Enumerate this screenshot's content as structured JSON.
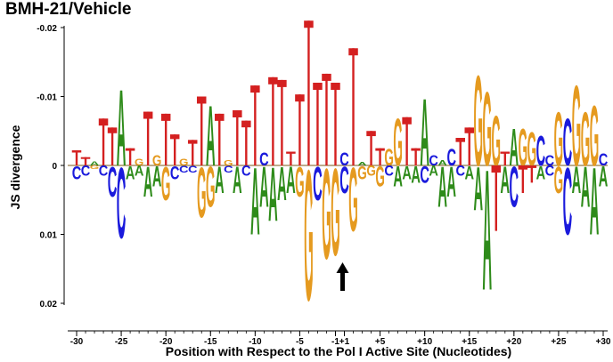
{
  "chart_data": {
    "type": "sequence-logo-divergence",
    "title": "BMH-21/Vehicle",
    "xlabel": "Position with Respect to the Pol I Active Site (Nucleotides)",
    "ylabel": "JS divergence",
    "ylim": [
      0.02,
      -0.02
    ],
    "yticks": [
      -0.02,
      -0.01,
      0,
      0.01,
      0.02
    ],
    "ytick_labels": [
      "-0.02",
      "-0.01",
      "0",
      "0.01",
      "0.02"
    ],
    "xticks": [
      -30,
      -25,
      -20,
      -15,
      -10,
      -5,
      -1,
      1,
      5,
      10,
      15,
      20,
      25,
      30
    ],
    "xtick_labels": [
      "-30",
      "-25",
      "-20",
      "-15",
      "-10",
      "-5",
      "-1",
      "+1",
      "+5",
      "+10",
      "+15",
      "+20",
      "+25",
      "+30"
    ],
    "positions": [
      -30,
      -29,
      -28,
      -27,
      -26,
      -25,
      -24,
      -23,
      -22,
      -21,
      -20,
      -19,
      -18,
      -17,
      -16,
      -15,
      -14,
      -13,
      -12,
      -11,
      -10,
      -9,
      -8,
      -7,
      -6,
      -5,
      -4,
      -3,
      -2,
      -1,
      1,
      2,
      3,
      4,
      5,
      6,
      7,
      8,
      9,
      10,
      11,
      12,
      13,
      14,
      15,
      16,
      17,
      18,
      19,
      20,
      21,
      22,
      23,
      24,
      25,
      26,
      27,
      28,
      29,
      30
    ],
    "colors": {
      "A": "#2e8b1a",
      "C": "#1a1adc",
      "G": "#e59a1f",
      "T": "#d42020"
    },
    "letters_above": [
      [
        [
          "T",
          0.0022
        ]
      ],
      [
        [
          "T",
          0.0012
        ]
      ],
      [
        [
          "A",
          0.0006
        ]
      ],
      [
        [
          "T",
          0.0068
        ]
      ],
      [
        [
          "T",
          0.0055
        ]
      ],
      [
        [
          "A",
          0.0114
        ]
      ],
      [
        [
          "T",
          0.0025
        ]
      ],
      [
        [
          "G",
          0.001
        ]
      ],
      [
        [
          "T",
          0.0078
        ]
      ],
      [
        [
          "G",
          0.0015
        ]
      ],
      [
        [
          "T",
          0.0075
        ]
      ],
      [
        [
          "T",
          0.0045
        ]
      ],
      [
        [
          "G",
          0.001
        ]
      ],
      [
        [
          "T",
          0.0037
        ]
      ],
      [
        [
          "T",
          0.01
        ]
      ],
      [
        [
          "A",
          0.009
        ]
      ],
      [
        [
          "T",
          0.0075
        ]
      ],
      [
        [
          "G",
          0.0008
        ]
      ],
      [
        [
          "T",
          0.008
        ]
      ],
      [
        [
          "T",
          0.0065
        ]
      ],
      [
        [
          "T",
          0.0116
        ]
      ],
      [
        [
          "C",
          0.002
        ]
      ],
      [
        [
          "T",
          0.0128
        ]
      ],
      [
        [
          "T",
          0.0124
        ]
      ],
      [
        [
          "T",
          0.002
        ]
      ],
      [
        [
          "T",
          0.0103
        ]
      ],
      [
        [
          "T",
          0.021
        ]
      ],
      [
        [
          "T",
          0.012
        ]
      ],
      [
        [
          "T",
          0.0133
        ]
      ],
      [
        [
          "T",
          0.012
        ]
      ],
      [
        [
          "C",
          0.002
        ]
      ],
      [
        [
          "T",
          0.017
        ]
      ],
      [
        [
          "A",
          0.0005
        ]
      ],
      [
        [
          "T",
          0.005
        ]
      ],
      [
        [
          "T",
          0.0025
        ]
      ],
      [
        [
          "G",
          0.0025
        ]
      ],
      [
        [
          "G",
          0.007
        ]
      ],
      [
        [
          "T",
          0.007
        ]
      ],
      [
        [
          "T",
          0.0025
        ]
      ],
      [
        [
          "A",
          0.01
        ]
      ],
      [
        [
          "C",
          0.0015
        ]
      ],
      [
        [
          "A",
          0.0008
        ]
      ],
      [
        [
          "C",
          0.0025
        ]
      ],
      [
        [
          "T",
          0.004
        ]
      ],
      [
        [
          "T",
          0.0055
        ]
      ],
      [
        [
          "G",
          0.0135
        ]
      ],
      [
        [
          "G",
          0.011
        ]
      ],
      [
        [
          "G",
          0.0075
        ]
      ],
      [
        [
          "T",
          0.002
        ]
      ],
      [
        [
          "A",
          0.0055
        ]
      ],
      [
        [
          "G",
          0.0055
        ]
      ],
      [
        [
          "G",
          0.005
        ]
      ],
      [
        [
          "C",
          0.0045
        ]
      ],
      [
        [
          "C",
          0.0015
        ]
      ],
      [
        [
          "G",
          0.008
        ]
      ],
      [
        [
          "C",
          0.007
        ]
      ],
      [
        [
          "G",
          0.012
        ]
      ],
      [
        [
          "G",
          0.008
        ]
      ],
      [
        [
          "G",
          0.009
        ]
      ],
      [
        [
          "C",
          0.0018
        ]
      ]
    ],
    "letters_below": [
      [
        [
          "C",
          0.002
        ]
      ],
      [
        [
          "C",
          0.0015
        ]
      ],
      [
        [
          "G",
          0.0005
        ]
      ],
      [
        [
          "C",
          0.0015
        ]
      ],
      [
        [
          "C",
          0.0045
        ]
      ],
      [
        [
          "C",
          0.0105
        ]
      ],
      [
        [
          "A",
          0.002
        ]
      ],
      [
        [
          "A",
          0.0015
        ]
      ],
      [
        [
          "A",
          0.0045
        ]
      ],
      [
        [
          "A",
          0.003
        ]
      ],
      [
        [
          "G",
          0.005
        ]
      ],
      [
        [
          "C",
          0.002
        ]
      ],
      [
        [
          "C",
          0.001
        ]
      ],
      [
        [
          "C",
          0.001
        ]
      ],
      [
        [
          "G",
          0.0075
        ]
      ],
      [
        [
          "G",
          0.006
        ]
      ],
      [
        [
          "A",
          0.004
        ]
      ],
      [
        [
          "C",
          0.001
        ]
      ],
      [
        [
          "A",
          0.004
        ]
      ],
      [
        [
          "C",
          0.0015
        ]
      ],
      [
        [
          "A",
          0.01
        ]
      ],
      [
        [
          "A",
          0.006
        ]
      ],
      [
        [
          "A",
          0.008
        ]
      ],
      [
        [
          "A",
          0.005
        ]
      ],
      [
        [
          "A",
          0.004
        ]
      ],
      [
        [
          "G",
          0.0045
        ]
      ],
      [
        [
          "G",
          0.0195
        ]
      ],
      [
        [
          "C",
          0.005
        ]
      ],
      [
        [
          "G",
          0.0135
        ]
      ],
      [
        [
          "G",
          0.013
        ]
      ],
      [
        [
          "C",
          0.004
        ]
      ],
      [
        [
          "G",
          0.0095
        ]
      ],
      [
        [
          "G",
          0.002
        ]
      ],
      [
        [
          "G",
          0.0015
        ]
      ],
      [
        [
          "G",
          0.003
        ]
      ],
      [
        [
          "C",
          0.0015
        ]
      ],
      [
        [
          "A",
          0.003
        ]
      ],
      [
        [
          "A",
          0.002
        ]
      ],
      [
        [
          "A",
          0.0025
        ]
      ],
      [
        [
          "C",
          0.0025
        ]
      ],
      [
        [
          "A",
          0.0015
        ]
      ],
      [
        [
          "A",
          0.006
        ]
      ],
      [
        [
          "A",
          0.0045
        ]
      ],
      [
        [
          "C",
          0.0015
        ]
      ],
      [
        [
          "A",
          0.002
        ]
      ],
      [
        [
          "A",
          0.0065
        ]
      ],
      [
        [
          "A",
          0.018
        ]
      ],
      [
        [
          "T",
          0.0095
        ]
      ],
      [
        [
          "A",
          0.004
        ]
      ],
      [
        [
          "C",
          0.006
        ]
      ],
      [
        [
          "T",
          0.004
        ]
      ],
      [
        [
          "T",
          0.0025
        ]
      ],
      [
        [
          "A",
          0.002
        ]
      ],
      [
        [
          "C",
          0.0015
        ]
      ],
      [
        [
          "G",
          0.004
        ]
      ],
      [
        [
          "C",
          0.01
        ]
      ],
      [
        [
          "A",
          0.004
        ]
      ],
      [
        [
          "A",
          0.006
        ]
      ],
      [
        [
          "A",
          0.01
        ]
      ],
      [
        [
          "A",
          0.003
        ]
      ]
    ]
  }
}
